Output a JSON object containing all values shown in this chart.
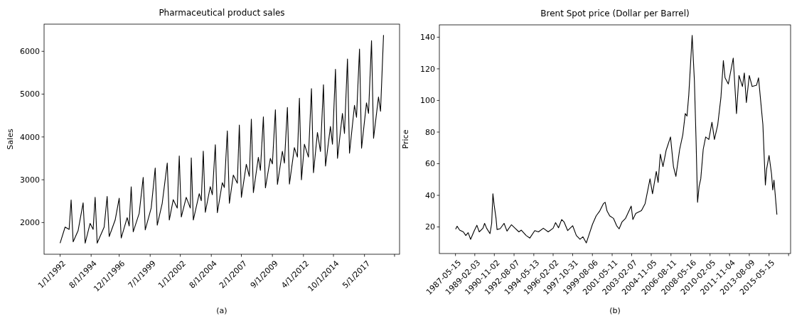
{
  "chart_data": [
    {
      "type": "line",
      "title": "Pharmaceutical product sales",
      "ylabel": "Sales",
      "annotations": [
        "(a)"
      ],
      "x": [
        "1992-01",
        "1992-06",
        "1992-10",
        "1992-12",
        "1993-02",
        "1993-07",
        "1993-12",
        "1994-02",
        "1994-07",
        "1994-10",
        "1994-12",
        "1995-02",
        "1995-09",
        "1995-12",
        "1996-02",
        "1996-08",
        "1996-12",
        "1997-02",
        "1997-08",
        "1997-10",
        "1997-12",
        "1998-02",
        "1998-08",
        "1998-12",
        "1999-02",
        "1999-08",
        "1999-12",
        "2000-02",
        "2000-07",
        "2000-12",
        "2001-02",
        "2001-06",
        "2001-10",
        "2001-12",
        "2002-02",
        "2002-07",
        "2002-11",
        "2002-12",
        "2003-02",
        "2003-08",
        "2003-10",
        "2003-12",
        "2004-02",
        "2004-07",
        "2004-09",
        "2004-12",
        "2005-02",
        "2005-07",
        "2005-09",
        "2005-12",
        "2006-02",
        "2006-06",
        "2006-10",
        "2006-12",
        "2007-02",
        "2007-07",
        "2007-10",
        "2007-12",
        "2008-02",
        "2008-07",
        "2008-09",
        "2008-12",
        "2009-02",
        "2009-07",
        "2009-09",
        "2009-12",
        "2010-02",
        "2010-07",
        "2010-09",
        "2010-12",
        "2011-02",
        "2011-07",
        "2011-10",
        "2011-12",
        "2012-02",
        "2012-05",
        "2012-09",
        "2012-12",
        "2013-02",
        "2013-06",
        "2013-09",
        "2013-12",
        "2014-02",
        "2014-07",
        "2014-09",
        "2014-12",
        "2015-02",
        "2015-07",
        "2015-09",
        "2015-12",
        "2016-02",
        "2016-07",
        "2016-09",
        "2016-12",
        "2017-02",
        "2017-07",
        "2017-09",
        "2017-12",
        "2018-02",
        "2018-07",
        "2018-09",
        "2018-12"
      ],
      "series": [
        {
          "color": "#000000",
          "values": [
            1520,
            1895,
            1840,
            2530,
            1550,
            1810,
            2460,
            1520,
            1980,
            1840,
            2590,
            1520,
            1895,
            2610,
            1675,
            2060,
            2570,
            1640,
            2115,
            1920,
            2835,
            1785,
            2215,
            3055,
            1830,
            2340,
            3275,
            1940,
            2450,
            3390,
            2060,
            2535,
            2340,
            3555,
            2130,
            2590,
            2340,
            3510,
            2060,
            2675,
            2510,
            3670,
            2240,
            2840,
            2650,
            3820,
            2230,
            2930,
            2820,
            4140,
            2450,
            3110,
            2920,
            4280,
            2590,
            3360,
            3080,
            4415,
            2700,
            3525,
            3220,
            4470,
            2810,
            3500,
            3370,
            4635,
            2890,
            3665,
            3390,
            4690,
            2900,
            3750,
            3530,
            4905,
            3000,
            3830,
            3530,
            5130,
            3165,
            4105,
            3660,
            5220,
            3320,
            4245,
            3830,
            5580,
            3500,
            4550,
            4080,
            5820,
            3620,
            4740,
            4460,
            6055,
            3735,
            4795,
            4550,
            6250,
            3970,
            4935,
            4600,
            6380
          ]
        }
      ],
      "xlim": [
        "1990-09",
        "2020-04"
      ],
      "ylim": [
        1260,
        6635
      ],
      "xticks": [
        {
          "value": "1992-01",
          "label": "1/1/1992"
        },
        {
          "value": "1994-08",
          "label": "8/1/1994"
        },
        {
          "value": "1996-12",
          "label": "12/1/1996"
        },
        {
          "value": "1999-07",
          "label": "7/1/1999"
        },
        {
          "value": "2002-01",
          "label": "1/1/2002"
        },
        {
          "value": "2004-08",
          "label": "8/1/2004"
        },
        {
          "value": "2007-02",
          "label": "2/1/2007"
        },
        {
          "value": "2009-09",
          "label": "9/1/2009"
        },
        {
          "value": "2012-04",
          "label": "4/1/2012"
        },
        {
          "value": "2014-10",
          "label": "10/1/2014"
        },
        {
          "value": "2017-05",
          "label": "5/1/2017"
        },
        {
          "value": "2019-11",
          "label": null
        }
      ],
      "yticks": [
        2000,
        3000,
        4000,
        5000,
        6000
      ]
    },
    {
      "type": "line",
      "title": "Brent Spot price (Dollar per Barrel)",
      "ylabel": "Price",
      "annotations": [
        "(b)"
      ],
      "x": [
        "1987-05-20",
        "1987-07-08",
        "1987-09-27",
        "1988-01-26",
        "1988-04-16",
        "1988-07-02",
        "1988-09-20",
        "1989-01-18",
        "1989-04-12",
        "1989-06-28",
        "1989-10-27",
        "1989-12-20",
        "1990-02-24",
        "1990-06-14",
        "1990-08-08",
        "1990-09-17",
        "1990-10-27",
        "1990-12-28",
        "1991-01-30",
        "1991-05-12",
        "1991-09-16",
        "1991-12-20",
        "1992-05-12",
        "1992-09-09",
        "1993-01-11",
        "1993-04-01",
        "1993-09-06",
        "1994-01-04",
        "1994-06-13",
        "1994-10-12",
        "1995-03-20",
        "1995-08-25",
        "1996-02-02",
        "1996-04-22",
        "1996-07-27",
        "1996-11-07",
        "1997-01-26",
        "1997-05-22",
        "1997-10-31",
        "1998-02-28",
        "1998-06-28",
        "1998-10-01",
        "1999-01-19",
        "1999-04-09",
        "1999-08-07",
        "1999-12-06",
        "2000-04-01",
        "2000-07-31",
        "2000-09-24",
        "2000-11-25",
        "2001-02-21",
        "2001-06-21",
        "2001-10-05",
        "2001-12-24",
        "2002-03-26",
        "2002-07-24",
        "2003-01-22",
        "2003-03-18",
        "2003-06-21",
        "2003-12-23",
        "2004-04-20",
        "2004-09-27",
        "2004-12-17",
        "2005-04-20",
        "2005-06-18",
        "2005-08-29",
        "2005-11-24",
        "2006-03-04",
        "2006-07-27",
        "2006-10-31",
        "2007-01-19",
        "2007-05-22",
        "2007-09-02",
        "2007-11-21",
        "2008-01-16",
        "2008-03-14",
        "2008-07-02",
        "2008-09-13",
        "2008-11-06",
        "2008-12-25",
        "2009-02-14",
        "2009-04-09",
        "2009-06-28",
        "2009-09-16",
        "2009-12-28",
        "2010-04-09",
        "2010-06-28",
        "2010-10-15",
        "2011-01-26",
        "2011-04-16",
        "2011-06-10",
        "2011-09-24",
        "2012-03-03",
        "2012-06-17",
        "2012-09-06",
        "2012-12-28",
        "2013-02-28",
        "2013-05-05",
        "2013-08-08",
        "2013-11-10",
        "2014-04-01",
        "2014-06-06",
        "2014-10-26",
        "2015-01-15",
        "2015-02-24",
        "2015-05-15",
        "2015-08-04",
        "2015-09-13",
        "2015-10-23",
        "2016-01-26"
      ],
      "series": [
        {
          "color": "#000000",
          "values": [
            18.6,
            20.5,
            18.0,
            16.9,
            14.6,
            16.4,
            12.2,
            17.7,
            21.1,
            16.9,
            19.2,
            22.3,
            19.2,
            15.8,
            22.3,
            41.0,
            34.0,
            25.5,
            18.4,
            18.9,
            22.3,
            17.4,
            21.4,
            19.2,
            16.9,
            18.0,
            14.6,
            13.0,
            17.7,
            16.9,
            19.2,
            16.9,
            19.2,
            22.7,
            19.5,
            24.7,
            23.1,
            17.7,
            20.8,
            14.6,
            12.2,
            13.8,
            9.9,
            14.6,
            21.6,
            27.0,
            30.1,
            34.8,
            35.6,
            30.1,
            27.0,
            25.5,
            20.8,
            18.8,
            23.1,
            25.5,
            33.2,
            24.7,
            28.6,
            30.4,
            34.8,
            50.4,
            41.0,
            55.1,
            48.1,
            66.0,
            58.2,
            68.3,
            76.9,
            58.2,
            52.0,
            69.1,
            78.4,
            91.7,
            90.1,
            103.4,
            141.1,
            112.7,
            75.3,
            35.6,
            45.7,
            50.4,
            69.1,
            76.9,
            75.3,
            86.2,
            75.3,
            84.7,
            101.8,
            125.2,
            114.3,
            110.4,
            126.8,
            91.7,
            115.8,
            108.8,
            117.4,
            98.7,
            115.8,
            108.8,
            109.6,
            114.3,
            84.7,
            46.5,
            56.6,
            65.2,
            53.5,
            43.4,
            49.6,
            27.8
          ]
        }
      ],
      "xlim": [
        "1985-12-06",
        "2017-04-16"
      ],
      "ylim": [
        3.2,
        147.8
      ],
      "xticks": [
        {
          "value": "1987-05-15",
          "label": "1987-05-15"
        },
        {
          "value": "1989-02-03",
          "label": "1989-02-03"
        },
        {
          "value": "1990-11-02",
          "label": "1990-11-02"
        },
        {
          "value": "1992-08-07",
          "label": "1992-08-07"
        },
        {
          "value": "1994-05-13",
          "label": "1994-05-13"
        },
        {
          "value": "1996-02-02",
          "label": "1996-02-02"
        },
        {
          "value": "1997-10-31",
          "label": "1997-10-31"
        },
        {
          "value": "1999-08-06",
          "label": "1999-08-06"
        },
        {
          "value": "2001-05-11",
          "label": "2001-05-11"
        },
        {
          "value": "2003-02-07",
          "label": "2003-02-07"
        },
        {
          "value": "2004-11-05",
          "label": "2004-11-05"
        },
        {
          "value": "2006-08-11",
          "label": "2006-08-11"
        },
        {
          "value": "2008-05-16",
          "label": "2008-05-16"
        },
        {
          "value": "2010-02-05",
          "label": "2010-02-05"
        },
        {
          "value": "2011-11-04",
          "label": "2011-11-04"
        },
        {
          "value": "2013-08-09",
          "label": "2013-08-09"
        },
        {
          "value": "2015-05-15",
          "label": "2015-05-15"
        },
        {
          "value": "2017-02-10",
          "label": null
        }
      ],
      "yticks": [
        20,
        40,
        60,
        80,
        100,
        120,
        140
      ]
    }
  ]
}
